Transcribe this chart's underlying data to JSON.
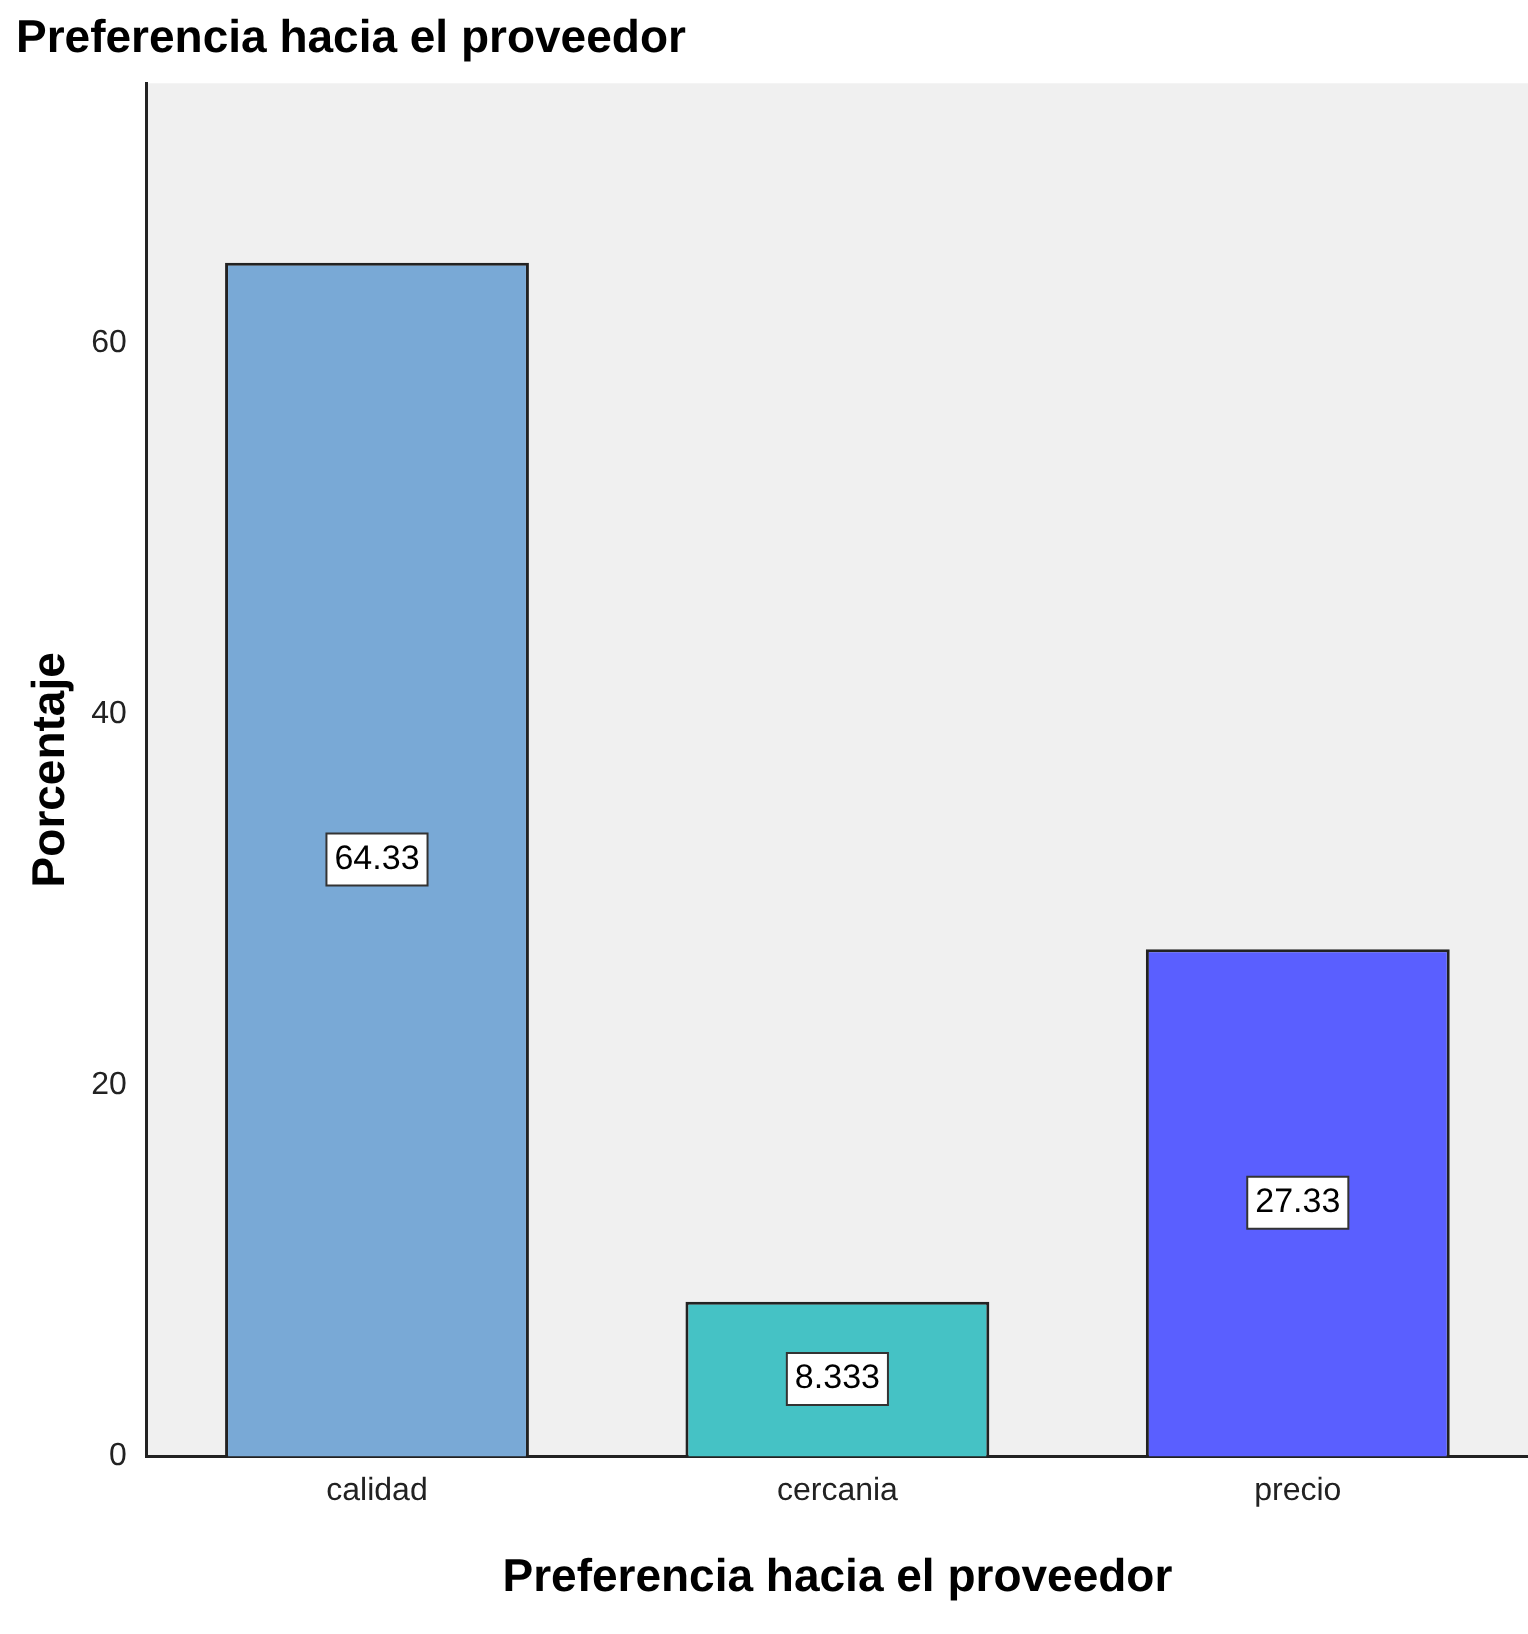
{
  "chart_data": {
    "type": "bar",
    "title": "Preferencia hacia el proveedor",
    "xlabel": "Preferencia hacia el proveedor",
    "ylabel": "Porcentaje",
    "categories": [
      "calidad",
      "cercania",
      "precio"
    ],
    "values": [
      64.33,
      8.333,
      27.33
    ],
    "colors": [
      "#79a9d6",
      "#45c2c5",
      "#5a5fff"
    ],
    "ylim": [
      0,
      74
    ],
    "yticks": [
      0,
      20,
      40,
      60
    ],
    "grid": false,
    "data_labels": true
  }
}
